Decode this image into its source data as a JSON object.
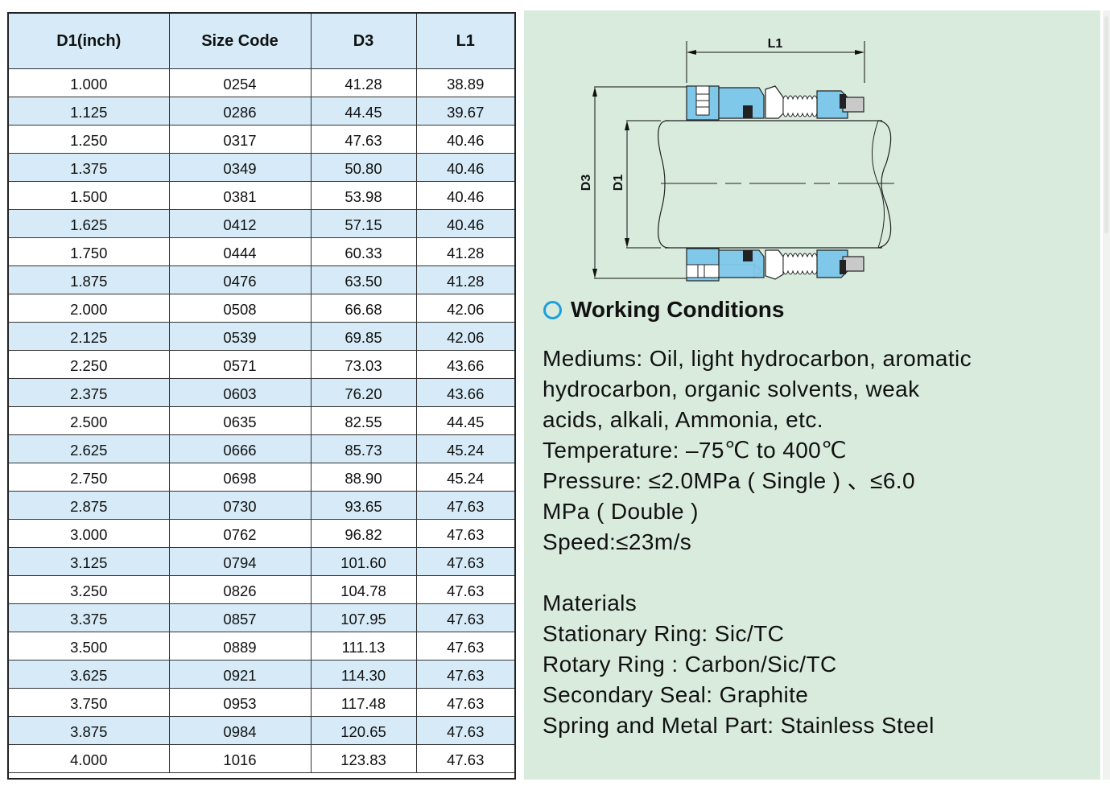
{
  "table": {
    "headers": [
      "D1(inch)",
      "Size Code",
      "D3",
      "L1"
    ],
    "rows": [
      [
        "1.000",
        "0254",
        "41.28",
        "38.89"
      ],
      [
        "1.125",
        "0286",
        "44.45",
        "39.67"
      ],
      [
        "1.250",
        "0317",
        "47.63",
        "40.46"
      ],
      [
        "1.375",
        "0349",
        "50.80",
        "40.46"
      ],
      [
        "1.500",
        "0381",
        "53.98",
        "40.46"
      ],
      [
        "1.625",
        "0412",
        "57.15",
        "40.46"
      ],
      [
        "1.750",
        "0444",
        "60.33",
        "41.28"
      ],
      [
        "1.875",
        "0476",
        "63.50",
        "41.28"
      ],
      [
        "2.000",
        "0508",
        "66.68",
        "42.06"
      ],
      [
        "2.125",
        "0539",
        "69.85",
        "42.06"
      ],
      [
        "2.250",
        "0571",
        "73.03",
        "43.66"
      ],
      [
        "2.375",
        "0603",
        "76.20",
        "43.66"
      ],
      [
        "2.500",
        "0635",
        "82.55",
        "44.45"
      ],
      [
        "2.625",
        "0666",
        "85.73",
        "45.24"
      ],
      [
        "2.750",
        "0698",
        "88.90",
        "45.24"
      ],
      [
        "2.875",
        "0730",
        "93.65",
        "47.63"
      ],
      [
        "3.000",
        "0762",
        "96.82",
        "47.63"
      ],
      [
        "3.125",
        "0794",
        "101.60",
        "47.63"
      ],
      [
        "3.250",
        "0826",
        "104.78",
        "47.63"
      ],
      [
        "3.375",
        "0857",
        "107.95",
        "47.63"
      ],
      [
        "3.500",
        "0889",
        "111.13",
        "47.63"
      ],
      [
        "3.625",
        "0921",
        "114.30",
        "47.63"
      ],
      [
        "3.750",
        "0953",
        "117.48",
        "47.63"
      ],
      [
        "3.875",
        "0984",
        "120.65",
        "47.63"
      ],
      [
        "4.000",
        "1016",
        "123.83",
        "47.63"
      ]
    ]
  },
  "diagram": {
    "label_l1": "L1",
    "label_d3": "D3",
    "label_d1": "D1"
  },
  "working_conditions": {
    "title": "Working Conditions",
    "lines": [
      "Mediums: Oil, light hydrocarbon, aromatic",
      "hydrocarbon, organic solvents, weak",
      "acids, alkali, Ammonia, etc.",
      "Temperature: –75℃ to 400℃",
      "Pressure: ≤2.0MPa ( Single ) 、≤6.0",
      "MPa ( Double )",
      "Speed:≤23m/s"
    ]
  },
  "materials": {
    "lines": [
      "Materials",
      "Stationary Ring: Sic/TC",
      "Rotary Ring : Carbon/Sic/TC",
      "Secondary Seal: Graphite",
      "Spring and Metal Part: Stainless Steel"
    ]
  },
  "colors": {
    "table_header_bg": "#d6ebf7",
    "table_alt_row_bg": "#d6ebf7",
    "panel_bg": "#d8ebdc",
    "seal_blue": "#7fc8ea",
    "icon_ring": "#1aa0dd"
  },
  "icons": [
    "circle-bullet-icon"
  ]
}
